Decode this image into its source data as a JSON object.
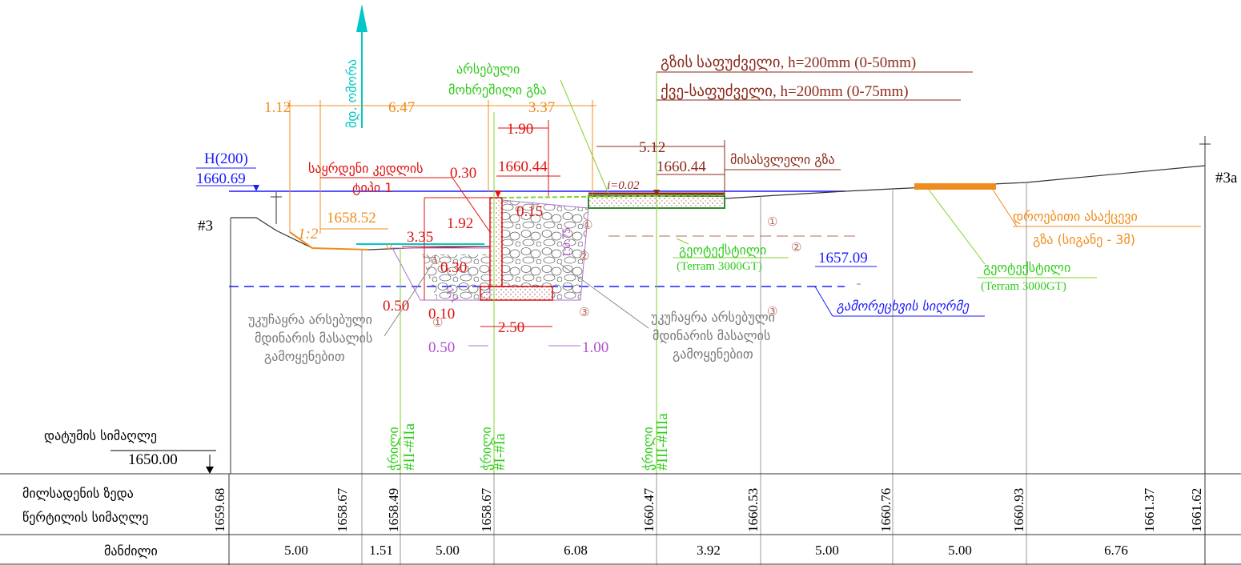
{
  "drawing": {
    "river": "მდ. ომორა",
    "dim_top": [
      "1.12",
      "6.47",
      "3.37"
    ],
    "existing_road": [
      "არსებული",
      "მოხრეშილი გზა"
    ],
    "base_layers": [
      "გზის საფუძველი, h=200mm (0-50mm)",
      "ქვე-საფუძველი, h=200mm (0-75mm)"
    ],
    "dim_190": "1.90",
    "dim_512": "5.12",
    "h200": [
      "H(200)",
      "1660.69"
    ],
    "wall": [
      "საყრდენი კედლის",
      "ტიპი 1"
    ],
    "dim_030_top": "0.30",
    "elev_wall": "1660.44",
    "elev_road": "1660.44",
    "access_road": "მისასვლელი გზა",
    "slope_road": "i=0.02",
    "dim_015": "0.15",
    "marker_left": "#3",
    "marker_right": "#3a",
    "slope_12": "1:2",
    "elev_water": "1658.52",
    "dim_335": "3.35",
    "dim_192": "1.92",
    "dim_030_mid": "0.30",
    "slope_075": "1:0.75",
    "slope_11": "1:1",
    "circles": [
      "①",
      "②",
      "③",
      "①",
      "①",
      "②",
      "③",
      "①"
    ],
    "geotextile_1": [
      "გეოტექსტილი",
      "(Terram 3000GT)"
    ],
    "geotextile_2": [
      "გეოტექსტილი",
      "(Terram 3000GT)"
    ],
    "scour_elev": "1657.09",
    "scour": "გამორეცხვის სიღრმე",
    "temp_road": [
      "დროებითი ასაქცევი",
      "გზა (სიგანე - 3მ)"
    ],
    "dim_050_red": "0.50",
    "dim_010": "0.10",
    "dim_250": "2.50",
    "dim_050_purple": "0.50",
    "dim_100": "1.00",
    "backfill_left": [
      "უკუჩაყრა არსებული",
      "მდინარის მასალის",
      "გამოყენებით"
    ],
    "backfill_right": [
      "უკუჩაყრა არსებული",
      "მდინარის მასალის",
      "გამოყენებით"
    ],
    "sections": [
      [
        "ჭრილი",
        "#II-#IIa"
      ],
      [
        "ჭრილი",
        "#I-#Ia"
      ],
      [
        "ჭრილი",
        "#III-#IIIa"
      ]
    ],
    "datum": [
      "დატუმის სიმაღლე",
      "1650.00"
    ]
  },
  "table": {
    "row_elev_label": [
      "მილსადენის ზედა",
      "წერტილის სიმაღლე"
    ],
    "elevations": [
      "1659.68",
      "1658.67",
      "1658.49",
      "1658.67",
      "1660.47",
      "1660.53",
      "1660.76",
      "1660.93",
      "1661.37",
      "1661.62"
    ],
    "row_dist_label": "მანძილი",
    "distances": [
      "5.00",
      "1.51",
      "5.00",
      "6.08",
      "3.92",
      "5.00",
      "5.00",
      "6.76"
    ]
  }
}
